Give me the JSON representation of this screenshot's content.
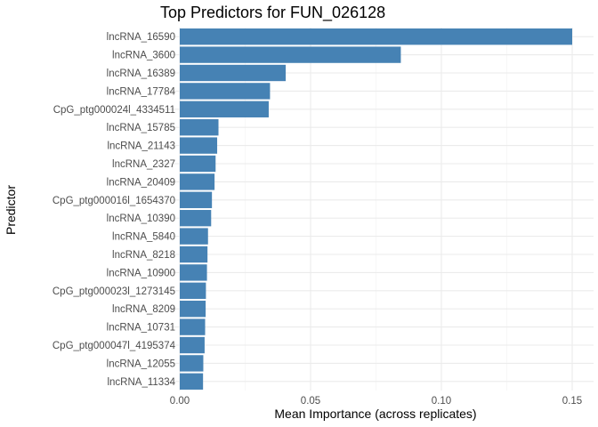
{
  "chart_data": {
    "type": "bar",
    "orientation": "horizontal",
    "title": "Top Predictors for FUN_026128",
    "xlabel": "Mean Importance (across replicates)",
    "ylabel": "Predictor",
    "xlim": [
      -0.006,
      0.16
    ],
    "xticks": [
      0.0,
      0.05,
      0.1,
      0.15
    ],
    "xtick_labels": [
      "0.00",
      "0.05",
      "0.10",
      "0.15"
    ],
    "grid": true,
    "bar_color": "#4682B4",
    "categories": [
      "lncRNA_16590",
      "lncRNA_3600",
      "lncRNA_16389",
      "lncRNA_17784",
      "CpG_ptg000024l_4334511",
      "lncRNA_15785",
      "lncRNA_21143",
      "lncRNA_2327",
      "lncRNA_20409",
      "CpG_ptg000016l_1654370",
      "lncRNA_10390",
      "lncRNA_5840",
      "lncRNA_8218",
      "lncRNA_10900",
      "CpG_ptg000023l_1273145",
      "lncRNA_8209",
      "lncRNA_10731",
      "CpG_ptg000047l_4195374",
      "lncRNA_12055",
      "lncRNA_11334"
    ],
    "values": [
      0.15,
      0.0845,
      0.0405,
      0.0345,
      0.034,
      0.0148,
      0.0143,
      0.0137,
      0.0133,
      0.0123,
      0.012,
      0.0108,
      0.0106,
      0.0104,
      0.01,
      0.0099,
      0.0097,
      0.0095,
      0.009,
      0.0089
    ]
  }
}
